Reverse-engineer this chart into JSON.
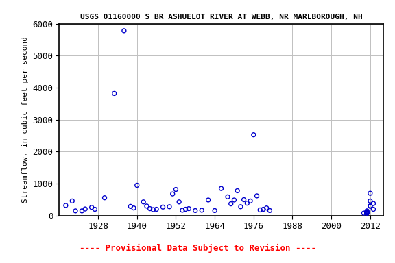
{
  "title": "USGS 01160000 S BR ASHUELOT RIVER AT WEBB, NR MARLBOROUGH, NH",
  "ylabel": "Streamflow, in cubic feet per second",
  "provisional_text": "---- Provisional Data Subject to Revision ----",
  "xlim": [
    1916,
    2016
  ],
  "ylim": [
    0,
    6000
  ],
  "xticks": [
    1928,
    1940,
    1952,
    1964,
    1976,
    1988,
    2000,
    2012
  ],
  "yticks": [
    0,
    1000,
    2000,
    3000,
    4000,
    5000,
    6000
  ],
  "scatter_color": "#0000cc",
  "background_color": "#ffffff",
  "grid_color": "#c0c0c0",
  "data_x": [
    1918,
    1920,
    1921,
    1923,
    1924,
    1926,
    1927,
    1930,
    1933,
    1936,
    1938,
    1939,
    1940,
    1942,
    1943,
    1944,
    1945,
    1946,
    1948,
    1950,
    1951,
    1952,
    1953,
    1954,
    1955,
    1956,
    1958,
    1960,
    1962,
    1964,
    1966,
    1968,
    1969,
    1970,
    1971,
    1972,
    1973,
    1974,
    1975,
    1976,
    1977,
    1978,
    1979,
    1980,
    1981,
    2010,
    2011,
    2011,
    2011,
    2011,
    2011,
    2011,
    2011,
    2011,
    2011,
    2011,
    2012,
    2012,
    2012,
    2012,
    2012,
    2013,
    2013
  ],
  "data_y": [
    320,
    460,
    150,
    150,
    210,
    260,
    200,
    560,
    3820,
    5780,
    290,
    240,
    950,
    430,
    300,
    220,
    190,
    200,
    270,
    280,
    680,
    820,
    430,
    170,
    200,
    220,
    160,
    170,
    490,
    160,
    850,
    590,
    370,
    490,
    780,
    280,
    500,
    390,
    460,
    2530,
    620,
    180,
    200,
    240,
    160,
    80,
    100,
    100,
    130,
    80,
    100,
    80,
    150,
    80,
    80,
    80,
    700,
    460,
    300,
    300,
    300,
    380,
    200
  ]
}
